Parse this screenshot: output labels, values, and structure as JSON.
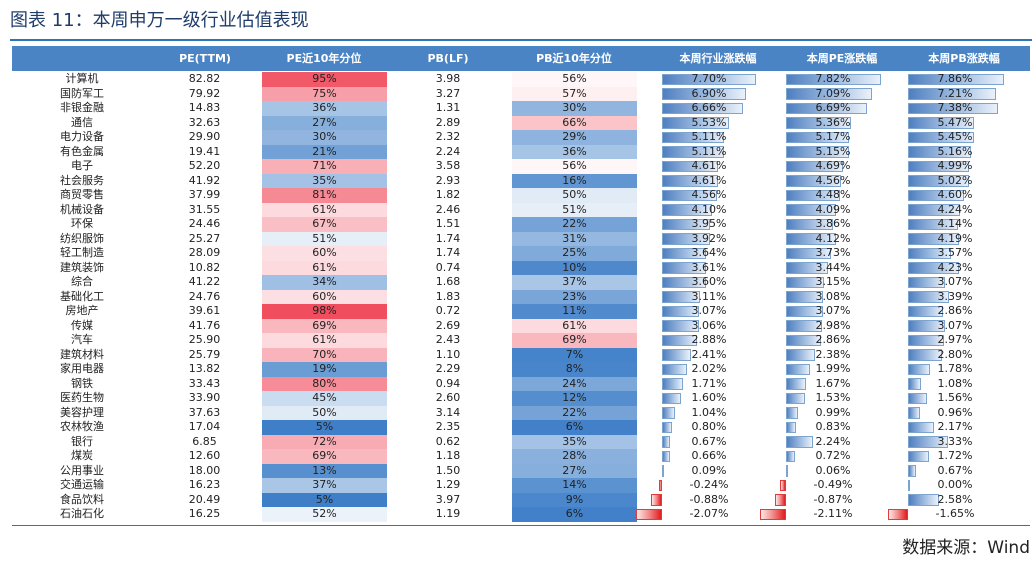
{
  "title": "图表 11：本周申万一级行业估值表现",
  "source": "数据来源：Wind",
  "colors": {
    "header_bg": "#4a84c4",
    "high": "#f04e5f",
    "low": "#3f7fc8",
    "positive_bar": "#4f7fc0",
    "negative_bar": "#e01d1d"
  },
  "chart_data": {
    "type": "table",
    "columns": [
      "",
      "PE(TTM)",
      "PE近10年分位",
      "PB(LF)",
      "PB近10年分位",
      "本周行业涨跌幅",
      "本周PE涨跌幅",
      "本周PB涨跌幅"
    ],
    "rows": [
      {
        "industry": "计算机",
        "pe": "82.82",
        "pe_pct": 95,
        "pb": "3.98",
        "pb_pct": 56,
        "chg": 7.7,
        "pe_chg": 7.82,
        "pb_chg": 7.86
      },
      {
        "industry": "国防军工",
        "pe": "79.92",
        "pe_pct": 75,
        "pb": "3.27",
        "pb_pct": 57,
        "chg": 6.9,
        "pe_chg": 7.09,
        "pb_chg": 7.21
      },
      {
        "industry": "非银金融",
        "pe": "14.83",
        "pe_pct": 36,
        "pb": "1.31",
        "pb_pct": 30,
        "chg": 6.66,
        "pe_chg": 6.69,
        "pb_chg": 7.38
      },
      {
        "industry": "通信",
        "pe": "32.63",
        "pe_pct": 27,
        "pb": "2.89",
        "pb_pct": 66,
        "chg": 5.53,
        "pe_chg": 5.36,
        "pb_chg": 5.47
      },
      {
        "industry": "电力设备",
        "pe": "29.90",
        "pe_pct": 30,
        "pb": "2.32",
        "pb_pct": 29,
        "chg": 5.11,
        "pe_chg": 5.17,
        "pb_chg": 5.45
      },
      {
        "industry": "有色金属",
        "pe": "19.41",
        "pe_pct": 21,
        "pb": "2.24",
        "pb_pct": 36,
        "chg": 5.11,
        "pe_chg": 5.15,
        "pb_chg": 5.16
      },
      {
        "industry": "电子",
        "pe": "52.20",
        "pe_pct": 71,
        "pb": "3.58",
        "pb_pct": 56,
        "chg": 4.61,
        "pe_chg": 4.69,
        "pb_chg": 4.99
      },
      {
        "industry": "社会服务",
        "pe": "41.92",
        "pe_pct": 35,
        "pb": "2.93",
        "pb_pct": 16,
        "chg": 4.61,
        "pe_chg": 4.56,
        "pb_chg": 5.02
      },
      {
        "industry": "商贸零售",
        "pe": "37.99",
        "pe_pct": 81,
        "pb": "1.82",
        "pb_pct": 50,
        "chg": 4.56,
        "pe_chg": 4.48,
        "pb_chg": 4.6
      },
      {
        "industry": "机械设备",
        "pe": "31.55",
        "pe_pct": 61,
        "pb": "2.46",
        "pb_pct": 51,
        "chg": 4.1,
        "pe_chg": 4.09,
        "pb_chg": 4.24
      },
      {
        "industry": "环保",
        "pe": "24.46",
        "pe_pct": 67,
        "pb": "1.51",
        "pb_pct": 22,
        "chg": 3.95,
        "pe_chg": 3.86,
        "pb_chg": 4.14
      },
      {
        "industry": "纺织服饰",
        "pe": "25.27",
        "pe_pct": 51,
        "pb": "1.74",
        "pb_pct": 31,
        "chg": 3.92,
        "pe_chg": 4.12,
        "pb_chg": 4.19
      },
      {
        "industry": "轻工制造",
        "pe": "28.09",
        "pe_pct": 60,
        "pb": "1.74",
        "pb_pct": 25,
        "chg": 3.64,
        "pe_chg": 3.73,
        "pb_chg": 3.57
      },
      {
        "industry": "建筑装饰",
        "pe": "10.82",
        "pe_pct": 61,
        "pb": "0.74",
        "pb_pct": 10,
        "chg": 3.61,
        "pe_chg": 3.44,
        "pb_chg": 4.23
      },
      {
        "industry": "综合",
        "pe": "41.22",
        "pe_pct": 34,
        "pb": "1.68",
        "pb_pct": 37,
        "chg": 3.6,
        "pe_chg": 3.15,
        "pb_chg": 3.07
      },
      {
        "industry": "基础化工",
        "pe": "24.76",
        "pe_pct": 60,
        "pb": "1.83",
        "pb_pct": 23,
        "chg": 3.11,
        "pe_chg": 3.08,
        "pb_chg": 3.39
      },
      {
        "industry": "房地产",
        "pe": "39.61",
        "pe_pct": 98,
        "pb": "0.72",
        "pb_pct": 11,
        "chg": 3.07,
        "pe_chg": 3.07,
        "pb_chg": 2.86
      },
      {
        "industry": "传媒",
        "pe": "41.76",
        "pe_pct": 69,
        "pb": "2.69",
        "pb_pct": 61,
        "chg": 3.06,
        "pe_chg": 2.98,
        "pb_chg": 3.07
      },
      {
        "industry": "汽车",
        "pe": "25.90",
        "pe_pct": 61,
        "pb": "2.43",
        "pb_pct": 69,
        "chg": 2.88,
        "pe_chg": 2.86,
        "pb_chg": 2.97
      },
      {
        "industry": "建筑材料",
        "pe": "25.79",
        "pe_pct": 70,
        "pb": "1.10",
        "pb_pct": 7,
        "chg": 2.41,
        "pe_chg": 2.38,
        "pb_chg": 2.8
      },
      {
        "industry": "家用电器",
        "pe": "13.82",
        "pe_pct": 19,
        "pb": "2.29",
        "pb_pct": 8,
        "chg": 2.02,
        "pe_chg": 1.99,
        "pb_chg": 1.78
      },
      {
        "industry": "钢铁",
        "pe": "33.43",
        "pe_pct": 80,
        "pb": "0.94",
        "pb_pct": 24,
        "chg": 1.71,
        "pe_chg": 1.67,
        "pb_chg": 1.08
      },
      {
        "industry": "医药生物",
        "pe": "33.90",
        "pe_pct": 45,
        "pb": "2.60",
        "pb_pct": 12,
        "chg": 1.6,
        "pe_chg": 1.53,
        "pb_chg": 1.56
      },
      {
        "industry": "美容护理",
        "pe": "37.63",
        "pe_pct": 50,
        "pb": "3.14",
        "pb_pct": 22,
        "chg": 1.04,
        "pe_chg": 0.99,
        "pb_chg": 0.96
      },
      {
        "industry": "农林牧渔",
        "pe": "17.04",
        "pe_pct": 5,
        "pb": "2.35",
        "pb_pct": 6,
        "chg": 0.8,
        "pe_chg": 0.83,
        "pb_chg": 2.17
      },
      {
        "industry": "银行",
        "pe": "6.85",
        "pe_pct": 72,
        "pb": "0.62",
        "pb_pct": 35,
        "chg": 0.67,
        "pe_chg": 2.24,
        "pb_chg": 3.33
      },
      {
        "industry": "煤炭",
        "pe": "12.60",
        "pe_pct": 69,
        "pb": "1.18",
        "pb_pct": 28,
        "chg": 0.66,
        "pe_chg": 0.72,
        "pb_chg": 1.72
      },
      {
        "industry": "公用事业",
        "pe": "18.00",
        "pe_pct": 13,
        "pb": "1.50",
        "pb_pct": 27,
        "chg": 0.09,
        "pe_chg": 0.06,
        "pb_chg": 0.67
      },
      {
        "industry": "交通运输",
        "pe": "16.23",
        "pe_pct": 37,
        "pb": "1.29",
        "pb_pct": 14,
        "chg": -0.24,
        "pe_chg": -0.49,
        "pb_chg": 0.0
      },
      {
        "industry": "食品饮料",
        "pe": "20.49",
        "pe_pct": 5,
        "pb": "3.97",
        "pb_pct": 9,
        "chg": -0.88,
        "pe_chg": -0.87,
        "pb_chg": 2.58
      },
      {
        "industry": "石油石化",
        "pe": "16.25",
        "pe_pct": 52,
        "pb": "1.19",
        "pb_pct": 6,
        "chg": -2.07,
        "pe_chg": -2.11,
        "pb_chg": -1.65
      }
    ]
  }
}
